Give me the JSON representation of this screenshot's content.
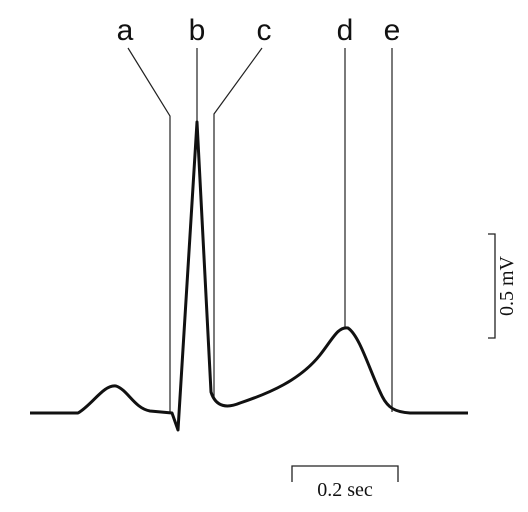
{
  "labels": [
    "a",
    "b",
    "c",
    "d",
    "e"
  ],
  "scale_bars": {
    "voltage": "0.5 mV",
    "time": "0.2 sec"
  }
}
